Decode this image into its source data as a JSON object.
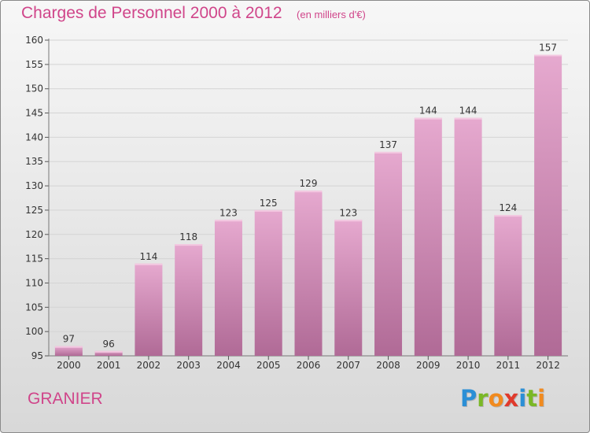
{
  "header": {
    "title": "Charges de Personnel 2000 à 2012",
    "subtitle": "(en milliers d'€)"
  },
  "footer": {
    "commune": "GRANIER",
    "logo_text": "Proxiti",
    "logo_colors": [
      "#2b8fd6",
      "#7ab826",
      "#f18a1e",
      "#e03a2c",
      "#2b8fd6",
      "#7ab826",
      "#f18a1e"
    ]
  },
  "colors": {
    "title": "#d0458a",
    "bar_top": "#e6a9cf",
    "bar_bottom": "#b06a96",
    "grid": "#d4d4d4",
    "axis_text": "#333333"
  },
  "chart_data": {
    "type": "bar",
    "categories": [
      "2000",
      "2001",
      "2002",
      "2003",
      "2004",
      "2005",
      "2006",
      "2007",
      "2008",
      "2009",
      "2010",
      "2011",
      "2012"
    ],
    "values": [
      97,
      96,
      114,
      118,
      123,
      125,
      129,
      123,
      137,
      144,
      144,
      124,
      157
    ],
    "data_labels": [
      "97",
      "96",
      "114",
      "118",
      "123",
      "125",
      "129",
      "123",
      "137",
      "144",
      "144",
      "124",
      "157"
    ],
    "yticks": [
      "95",
      "100",
      "105",
      "110",
      "115",
      "120",
      "125",
      "130",
      "135",
      "140",
      "145",
      "150",
      "155",
      "160"
    ],
    "ylim": [
      95,
      160
    ],
    "grid": true
  }
}
